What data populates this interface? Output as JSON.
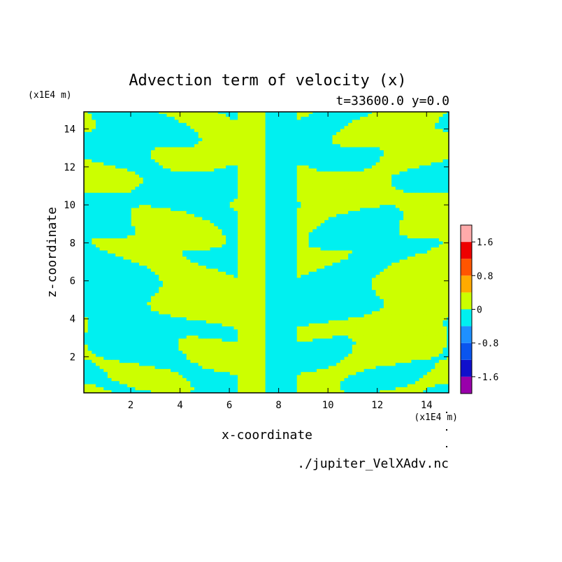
{
  "chart_data": {
    "type": "heatmap",
    "title": "Advection term of velocity (x)",
    "subtitle": "t=33600.0 y=0.0",
    "xlabel": "x-coordinate",
    "ylabel": "z-coordinate",
    "x_unit": "(x1E4 m)",
    "y_unit": "(x1E4 m)",
    "xlim": [
      0.1,
      14.9
    ],
    "ylim": [
      0.1,
      14.9
    ],
    "x_ticks": [
      2,
      4,
      6,
      8,
      10,
      12,
      14
    ],
    "y_ticks": [
      2,
      4,
      6,
      8,
      10,
      12,
      14
    ],
    "x_tick_labels": [
      "2",
      "4",
      "6",
      "8",
      "10",
      "12",
      "14"
    ],
    "y_tick_labels": [
      "2",
      "4",
      "6",
      "8",
      "10",
      "12",
      "14"
    ],
    "grid": false,
    "colorbar": {
      "levels": [
        -2.0,
        -1.6,
        -1.2,
        -0.8,
        -0.4,
        0.0,
        0.4,
        0.8,
        1.2,
        1.6,
        2.0
      ],
      "colors": [
        "#9900aa",
        "#1010cc",
        "#0a55ee",
        "#1e90ff",
        "#00f0f0",
        "#ccff00",
        "#ffaa00",
        "#ff5500",
        "#ee0000",
        "#ffaaaa"
      ],
      "tick_values": [
        1.6,
        0.8,
        0,
        -0.8,
        -1.6
      ],
      "tick_labels": [
        "1.6",
        "0.8",
        "0",
        "-0.8",
        "-1.6"
      ]
    },
    "field_note": "values within levels -0.4..0.4 (cyan <0, yellow-green >0); antisymmetric about x=7.5",
    "source": "./jupiter_VelXAdv.nc"
  }
}
